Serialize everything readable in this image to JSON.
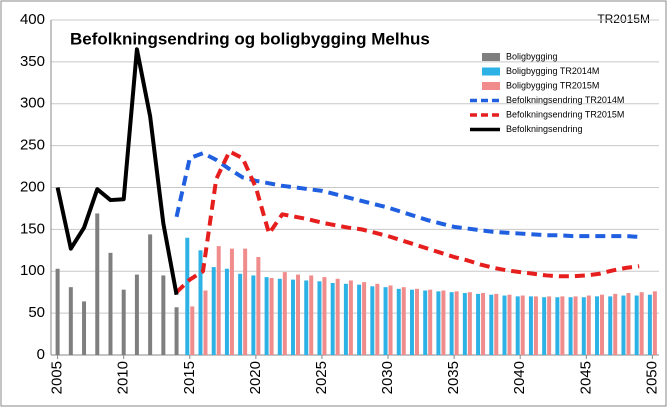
{
  "chart_data": {
    "type": "combo",
    "title": "Befolkningsendring og boligbygging Melhus",
    "corner_label": "TR2015M",
    "x": [
      2005,
      2006,
      2007,
      2008,
      2009,
      2010,
      2011,
      2012,
      2013,
      2014,
      2015,
      2016,
      2017,
      2018,
      2019,
      2020,
      2021,
      2022,
      2023,
      2024,
      2025,
      2026,
      2027,
      2028,
      2029,
      2030,
      2031,
      2032,
      2033,
      2034,
      2035,
      2036,
      2037,
      2038,
      2039,
      2040,
      2041,
      2042,
      2043,
      2044,
      2045,
      2046,
      2047,
      2048,
      2049,
      2050
    ],
    "xlim": [
      2004.5,
      2050.5
    ],
    "xticks": [
      2005,
      2010,
      2015,
      2020,
      2025,
      2030,
      2035,
      2040,
      2045,
      2050
    ],
    "ylim": [
      0,
      400
    ],
    "yticks": [
      0,
      50,
      100,
      150,
      200,
      250,
      300,
      350,
      400
    ],
    "grid": true,
    "legend": "upper right",
    "series": [
      {
        "name": "Boligbygging",
        "type": "bar",
        "color": "#7f7f7f",
        "values": [
          103,
          81,
          64,
          169,
          122,
          78,
          96,
          144,
          95,
          57,
          null,
          null,
          null,
          null,
          null,
          null,
          null,
          null,
          null,
          null,
          null,
          null,
          null,
          null,
          null,
          null,
          null,
          null,
          null,
          null,
          null,
          null,
          null,
          null,
          null,
          null,
          null,
          null,
          null,
          null,
          null,
          null,
          null,
          null,
          null,
          null
        ]
      },
      {
        "name": "Boligbygging TR2014M",
        "type": "bar",
        "color": "#2db2e6",
        "values": [
          null,
          null,
          null,
          null,
          null,
          null,
          null,
          null,
          null,
          null,
          140,
          125,
          105,
          103,
          97,
          95,
          93,
          91,
          90,
          89,
          88,
          86,
          85,
          84,
          82,
          81,
          79,
          78,
          77,
          76,
          75,
          74,
          73,
          72,
          71,
          70,
          70,
          69,
          69,
          69,
          69,
          70,
          70,
          71,
          71,
          72
        ]
      },
      {
        "name": "Boligbygging TR2015M",
        "type": "bar",
        "color": "#f08c8c",
        "values": [
          null,
          null,
          null,
          null,
          null,
          null,
          null,
          null,
          null,
          null,
          58,
          77,
          130,
          127,
          127,
          117,
          92,
          99,
          96,
          95,
          93,
          91,
          89,
          87,
          85,
          83,
          81,
          79,
          78,
          77,
          76,
          75,
          74,
          73,
          72,
          71,
          70,
          70,
          70,
          70,
          71,
          72,
          73,
          74,
          75,
          76
        ]
      },
      {
        "name": "Befolkningsendring TR2014M",
        "type": "line",
        "dash": true,
        "color": "#1f5fe0",
        "values": [
          null,
          null,
          null,
          null,
          null,
          null,
          null,
          null,
          null,
          165,
          235,
          241,
          233,
          222,
          212,
          208,
          205,
          202,
          200,
          198,
          196,
          192,
          188,
          184,
          180,
          176,
          171,
          166,
          161,
          157,
          153,
          151,
          149,
          147,
          146,
          145,
          144,
          143,
          143,
          142,
          142,
          142,
          142,
          142,
          141,
          null
        ]
      },
      {
        "name": "Befolkningsendring TR2015M",
        "type": "line",
        "dash": true,
        "color": "#e61e1e",
        "values": [
          null,
          null,
          null,
          null,
          null,
          null,
          null,
          null,
          null,
          75,
          90,
          100,
          210,
          243,
          235,
          200,
          145,
          168,
          165,
          162,
          158,
          155,
          152,
          150,
          146,
          142,
          137,
          132,
          127,
          122,
          117,
          113,
          108,
          104,
          101,
          99,
          97,
          95,
          94,
          94,
          95,
          97,
          101,
          104,
          106,
          null
        ]
      },
      {
        "name": "Befolkningsendring",
        "type": "line",
        "dash": false,
        "color": "#000000",
        "values": [
          200,
          127,
          152,
          198,
          185,
          186,
          365,
          285,
          157,
          72,
          null,
          null,
          null,
          null,
          null,
          null,
          null,
          null,
          null,
          null,
          null,
          null,
          null,
          null,
          null,
          null,
          null,
          null,
          null,
          null,
          null,
          null,
          null,
          null,
          null,
          null,
          null,
          null,
          null,
          null,
          null,
          null,
          null,
          null,
          null,
          null
        ]
      }
    ]
  }
}
